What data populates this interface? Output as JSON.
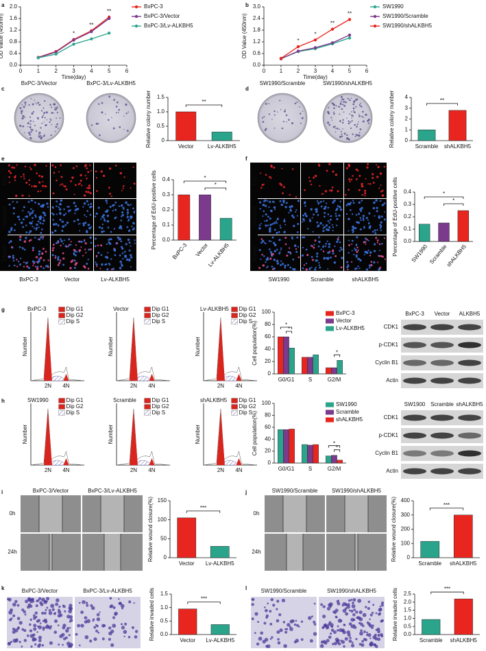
{
  "chart_data": [
    {
      "type": "line",
      "panel": "a",
      "xlabel": "Time(day)",
      "ylabel": "OD Value (450nm)",
      "x": [
        1,
        2,
        3,
        4,
        5
      ],
      "xlim": [
        0,
        6
      ],
      "xticks": [
        0,
        1,
        2,
        3,
        4,
        5,
        6
      ],
      "ylim": [
        0,
        2
      ],
      "yticks": [
        {
          "value": 0,
          "label": "0.0"
        },
        0.4,
        0.8,
        1.2,
        1.6,
        {
          "value": 2,
          "label": "2.0"
        }
      ],
      "series": [
        {
          "name": "BxPC-3",
          "color": "#e8261f",
          "values": [
            0.27,
            0.47,
            0.88,
            1.18,
            1.65
          ]
        },
        {
          "name": "BxPC-3/Vector",
          "color": "#7b3a8c",
          "values": [
            0.26,
            0.45,
            0.86,
            1.15,
            1.6
          ]
        },
        {
          "name": "BxPC-3/Lv-ALKBH5",
          "color": "#2aa58c",
          "values": [
            0.25,
            0.38,
            0.72,
            0.9,
            1.1
          ]
        }
      ],
      "annotations": [
        {
          "text": "*",
          "x": 3
        },
        {
          "text": "**",
          "x": 4
        },
        {
          "text": "**",
          "x": 5
        }
      ]
    },
    {
      "type": "line",
      "panel": "b",
      "xlabel": "Time(day)",
      "ylabel": "OD Value (450nm)",
      "x": [
        1,
        2,
        3,
        4,
        5
      ],
      "xlim": [
        0,
        6
      ],
      "xticks": [
        0,
        1,
        2,
        3,
        4,
        5,
        6
      ],
      "ylim": [
        0,
        3
      ],
      "yticks": [
        {
          "value": 0,
          "label": "0.0"
        },
        0.6,
        1.2,
        1.8,
        2.4,
        {
          "value": 3,
          "label": "3.0"
        }
      ],
      "series": [
        {
          "name": "SW1990",
          "color": "#2aa58c",
          "values": [
            0.33,
            0.7,
            0.85,
            1.1,
            1.4
          ]
        },
        {
          "name": "SW1990/Scramble",
          "color": "#7b3a8c",
          "values": [
            0.33,
            0.72,
            0.9,
            1.15,
            1.55
          ]
        },
        {
          "name": "SW1990/shALKBH5",
          "color": "#e8261f",
          "values": [
            0.35,
            0.95,
            1.3,
            1.85,
            2.35
          ]
        }
      ],
      "annotations": [
        {
          "text": "*",
          "x": 2
        },
        {
          "text": "*",
          "x": 3
        },
        {
          "text": "**",
          "x": 4
        },
        {
          "text": "**",
          "x": 5
        }
      ]
    },
    {
      "type": "bar",
      "panel": "c",
      "ylabel": "Relative colony number",
      "categories": [
        "Vector",
        "Lv-ALKBH5"
      ],
      "values": [
        1.0,
        0.3
      ],
      "colors": [
        "#e8261f",
        "#2aa58c"
      ],
      "ylim": [
        0,
        1.5
      ],
      "yticks": [
        0,
        0.5,
        {
          "value": 1,
          "label": "1.0"
        },
        1.5
      ],
      "annotations": [
        "**"
      ]
    },
    {
      "type": "bar",
      "panel": "d",
      "ylabel": "Relative colony number",
      "categories": [
        "Scramble",
        "shALKBH5"
      ],
      "values": [
        1.0,
        2.8
      ],
      "colors": [
        "#2aa58c",
        "#e8261f"
      ],
      "ylim": [
        0,
        4
      ],
      "yticks": [
        0,
        1,
        2,
        3,
        4
      ],
      "annotations": [
        "**"
      ]
    },
    {
      "type": "bar",
      "panel": "e",
      "ylabel": "Percentage of EdU-positive cells",
      "categories": [
        "BxPC-3",
        "Vector",
        "Lv-ALKBH5"
      ],
      "values": [
        0.3,
        0.3,
        0.145
      ],
      "colors": [
        "#e8261f",
        "#7b3a8c",
        "#2aa58c"
      ],
      "ylim": [
        0,
        0.4
      ],
      "yticks": [
        {
          "value": 0,
          "label": "0.0"
        },
        0.1,
        0.2,
        0.3,
        0.4
      ],
      "annotations": [
        "*",
        "*"
      ]
    },
    {
      "type": "bar",
      "panel": "f",
      "ylabel": "Percentage of EdU-positive cells",
      "categories": [
        "SW1990",
        "Scramble",
        "shALKBH5"
      ],
      "values": [
        0.14,
        0.15,
        0.25
      ],
      "colors": [
        "#2aa58c",
        "#7b3a8c",
        "#e8261f"
      ],
      "ylim": [
        0,
        0.4
      ],
      "yticks": [
        {
          "value": 0,
          "label": "0.0"
        },
        0.1,
        0.2,
        0.3,
        0.4
      ],
      "annotations": [
        "*",
        "*"
      ]
    },
    {
      "type": "grouped",
      "panel": "g",
      "ylabel": "Cell population(%)",
      "categories": [
        "G0/G1",
        "S",
        "G2/M"
      ],
      "ylim": [
        0,
        100
      ],
      "yticks": [
        0,
        20,
        40,
        60,
        80,
        100
      ],
      "series": [
        {
          "name": "BxPC-3",
          "color": "#e8261f",
          "values": [
            60,
            27,
            10
          ]
        },
        {
          "name": "Vector",
          "color": "#7b3a8c",
          "values": [
            60,
            27,
            10
          ]
        },
        {
          "name": "Lv-ALKBH5",
          "color": "#2aa58c",
          "values": [
            42,
            31,
            22
          ]
        }
      ],
      "annotations": [
        {
          "text": "*",
          "category": "G0/G1"
        },
        {
          "text": "*",
          "category": "G0/G1"
        },
        {
          "text": "*",
          "category": "G2/M"
        }
      ]
    },
    {
      "type": "grouped",
      "panel": "h",
      "ylabel": "Cell population(%)",
      "categories": [
        "G0/G1",
        "S",
        "G2/M"
      ],
      "ylim": [
        0,
        100
      ],
      "yticks": [
        0,
        20,
        40,
        60,
        80,
        100
      ],
      "series": [
        {
          "name": "SW1990",
          "color": "#2aa58c",
          "values": [
            56,
            31,
            12
          ]
        },
        {
          "name": "Scramble",
          "color": "#7b3a8c",
          "values": [
            56,
            30,
            13
          ]
        },
        {
          "name": "shALKBH5",
          "color": "#e8261f",
          "values": [
            57,
            31,
            5
          ]
        }
      ],
      "annotations": [
        {
          "text": "*",
          "category": "G2/M"
        },
        {
          "text": "*",
          "category": "G2/M"
        }
      ]
    },
    {
      "type": "bar",
      "panel": "i",
      "ylabel": "Relative wound closure(%)",
      "categories": [
        "Vector",
        "Lv-ALKBH5"
      ],
      "values": [
        105,
        30
      ],
      "colors": [
        "#e8261f",
        "#2aa58c"
      ],
      "ylim": [
        0,
        150
      ],
      "yticks": [
        0,
        50,
        100,
        150
      ],
      "annotations": [
        "***"
      ]
    },
    {
      "type": "bar",
      "panel": "j",
      "ylabel": "Relative wound closure(%)",
      "categories": [
        "Scramble",
        "shALKBH5"
      ],
      "values": [
        115,
        300
      ],
      "colors": [
        "#2aa58c",
        "#e8261f"
      ],
      "ylim": [
        0,
        400
      ],
      "yticks": [
        0,
        100,
        200,
        300,
        400
      ],
      "annotations": [
        "***"
      ]
    },
    {
      "type": "bar",
      "panel": "k",
      "ylabel": "Relative invaded cells",
      "categories": [
        "Vector",
        "Lv-ALKBH5"
      ],
      "values": [
        0.95,
        0.37
      ],
      "colors": [
        "#e8261f",
        "#2aa58c"
      ],
      "ylim": [
        0,
        1.5
      ],
      "yticks": [
        {
          "value": 0,
          "label": "0.0"
        },
        0.5,
        {
          "value": 1,
          "label": "1.0"
        },
        1.5
      ],
      "annotations": [
        "***"
      ]
    },
    {
      "type": "bar",
      "panel": "l",
      "ylabel": "Relative invaded cells",
      "categories": [
        "Scramble",
        "shALKBH5"
      ],
      "values": [
        0.93,
        2.2
      ],
      "colors": [
        "#2aa58c",
        "#e8261f"
      ],
      "ylim": [
        0,
        2.5
      ],
      "yticks": [
        {
          "value": 0,
          "label": "0.0"
        },
        0.5,
        {
          "value": 1,
          "label": "1.0"
        },
        1.5,
        {
          "value": 2,
          "label": "2.0"
        },
        2.5
      ],
      "annotations": [
        "***"
      ]
    }
  ],
  "figure": {
    "c_images": [
      "BxPC-3/Vector",
      "BxPC-3/Lv-ALKBH5"
    ],
    "d_images": [
      "SW1990/Scramble",
      "SW1990/shALKBH5"
    ],
    "e_rows": [
      "EdU",
      "Hoechst",
      "Merge"
    ],
    "e_cols": [
      "BxPC-3",
      "Vector",
      "Lv-ALKBH5"
    ],
    "f_rows": [
      "EdU",
      "Hoechst",
      "Merge"
    ],
    "f_cols": [
      "SW1990",
      "Scramble",
      "shALKBH5"
    ],
    "g_flow": [
      "BxPC-3",
      "Vector",
      "Lv-ALKBH5"
    ],
    "h_flow": [
      "SW1990",
      "Scramble",
      "shALKBH5"
    ],
    "flow_legend": [
      "Dip G1",
      "Dip G2",
      "Dip S"
    ],
    "flow_ylabel": "Number",
    "flow_peaks": [
      "2N",
      "4N"
    ],
    "g_blot": {
      "columns": [
        "BxPC-3",
        "Vector",
        "ALKBH5"
      ],
      "rows": [
        "CDK1",
        "p-CDK1",
        "Cyclin B1",
        "Actin"
      ]
    },
    "h_blot": {
      "columns": [
        "SW1900",
        "Scramble",
        "shALKBH5"
      ],
      "rows": [
        "CDK1",
        "p-CDK1",
        "Cyclin B1",
        "Actin"
      ]
    },
    "i_images": [
      "BxPC-3/Vector",
      "BxPC-3/Lv-ALKBH5"
    ],
    "i_rows": [
      "0h",
      "24h"
    ],
    "j_images": [
      "SW1990/Scramble",
      "SW1990/shALKBH5"
    ],
    "j_rows": [
      "0h",
      "24h"
    ],
    "k_images": [
      "BxPC-3/Vector",
      "BxPC-3/Lv-ALKBH5"
    ],
    "l_images": [
      "SW1990/Scramble",
      "SW1990/shALKBH5"
    ]
  }
}
